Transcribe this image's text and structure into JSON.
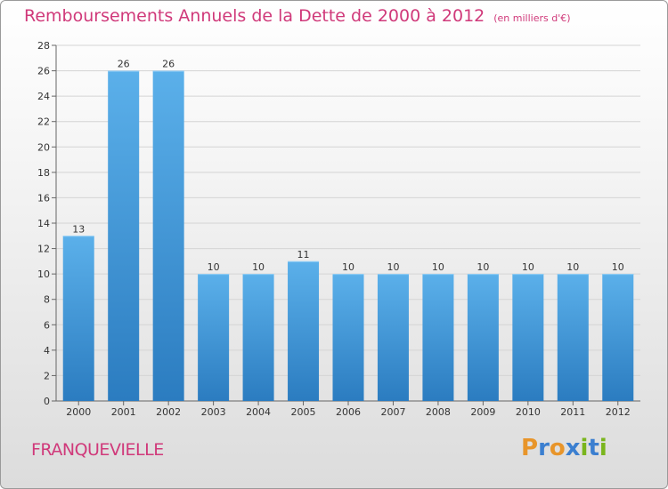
{
  "chart_data": {
    "type": "bar",
    "title": "Remboursements Annuels de la Dette de 2000 à 2012",
    "subtitle": "(en milliers d'€)",
    "categories": [
      "2000",
      "2001",
      "2002",
      "2003",
      "2004",
      "2005",
      "2006",
      "2007",
      "2008",
      "2009",
      "2010",
      "2011",
      "2012"
    ],
    "values": [
      13,
      26,
      26,
      10,
      10,
      11,
      10,
      10,
      10,
      10,
      10,
      10,
      10
    ],
    "ylim": [
      0,
      28
    ],
    "yticks": [
      0,
      2,
      4,
      6,
      8,
      10,
      12,
      14,
      16,
      18,
      20,
      22,
      24,
      26,
      28
    ],
    "grid": true,
    "bar_color": "#3a8fd6"
  },
  "footer": {
    "commune": "FRANQUEVIELLE",
    "brand": {
      "text": "Proxiti",
      "letters": [
        {
          "char": "P",
          "color": "#e8952a"
        },
        {
          "char": "r",
          "color": "#3b7fd0"
        },
        {
          "char": "o",
          "color": "#e8952a"
        },
        {
          "char": "x",
          "color": "#3b7fd0"
        },
        {
          "char": "i",
          "color": "#7ab51d"
        },
        {
          "char": "t",
          "color": "#3b7fd0"
        },
        {
          "char": "i",
          "color": "#7ab51d"
        }
      ]
    }
  },
  "colors": {
    "title": "#d0397a",
    "bar_light": "#5bb0ea",
    "bar_dark": "#2b7cc0"
  }
}
